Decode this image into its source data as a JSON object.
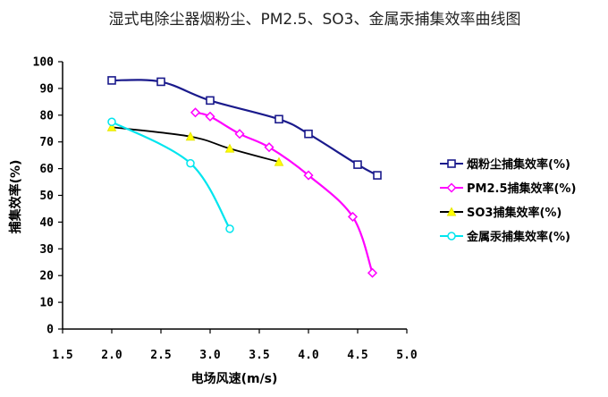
{
  "chart_data": {
    "type": "line",
    "title": "湿式电除尘器烟粉尘、PM2.5、SO3、金属汞捕集效率曲线图",
    "xlabel": "电场风速(m/s)",
    "ylabel": "捕集效率(%)",
    "xlim": [
      1.5,
      5.0
    ],
    "ylim": [
      0,
      100
    ],
    "x_ticks": [
      "1.5",
      "2.0",
      "2.5",
      "3.0",
      "3.5",
      "4.0",
      "4.5",
      "5.0"
    ],
    "y_ticks": [
      "0",
      "10",
      "20",
      "30",
      "40",
      "50",
      "60",
      "70",
      "80",
      "90",
      "100"
    ],
    "grid": false,
    "legend_position": "right",
    "series": [
      {
        "name": "烟粉尘捕集效率(%)",
        "color": "#1a1a8c",
        "marker": "square",
        "x": [
          2.0,
          2.5,
          3.0,
          3.7,
          4.0,
          4.5,
          4.7
        ],
        "y": [
          93,
          92.5,
          85.5,
          78.5,
          73,
          61.5,
          57.5
        ]
      },
      {
        "name": "PM2.5捕集效率(%)",
        "color": "#ff00ff",
        "marker": "diamond",
        "x": [
          2.85,
          3.0,
          3.3,
          3.6,
          4.0,
          4.45,
          4.65
        ],
        "y": [
          81,
          79.5,
          73,
          68,
          57.5,
          42,
          21
        ]
      },
      {
        "name": "SO3捕集效率(%)",
        "color": "#000000",
        "marker": "triangle",
        "x": [
          2.0,
          2.8,
          3.2,
          3.7
        ],
        "y": [
          75.5,
          72,
          67.5,
          62.5
        ]
      },
      {
        "name": "金属汞捕集效率(%)",
        "color": "#00e5ee",
        "marker": "circle",
        "x": [
          2.0,
          2.8,
          3.2
        ],
        "y": [
          77.5,
          62,
          37.5
        ]
      }
    ]
  }
}
